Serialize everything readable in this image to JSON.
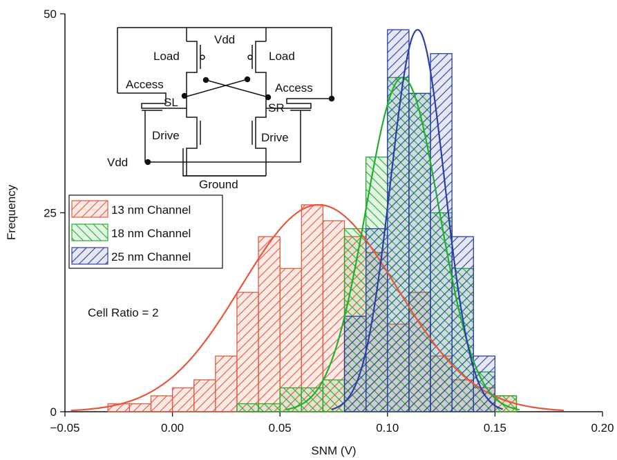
{
  "colors": {
    "series_13nm": "#e8553a",
    "series_18nm": "#1fb02a",
    "series_25nm": "#2a3ea8"
  },
  "chart_data": {
    "type": "bar",
    "subtype": "histogram-with-fit",
    "xlabel": "SNM (V)",
    "ylabel": "Frequency",
    "xlim": [
      -0.05,
      0.2
    ],
    "ylim": [
      0,
      50
    ],
    "xticks": [
      "−0.05",
      "0.00",
      "0.05",
      "0.10",
      "0.15",
      "0.20"
    ],
    "yticks": [
      "0",
      "25",
      "50"
    ],
    "bin_width": 0.01,
    "grid": false,
    "legend_position": "center-left",
    "annotation": "Cell Ratio = 2",
    "series": [
      {
        "name": "13 nm Channel",
        "color_key": "series_13nm",
        "bins": [
          {
            "x0": -0.03,
            "count": 1
          },
          {
            "x0": -0.02,
            "count": 1
          },
          {
            "x0": -0.01,
            "count": 2
          },
          {
            "x0": 0.0,
            "count": 3
          },
          {
            "x0": 0.01,
            "count": 4
          },
          {
            "x0": 0.02,
            "count": 7
          },
          {
            "x0": 0.03,
            "count": 15
          },
          {
            "x0": 0.04,
            "count": 22
          },
          {
            "x0": 0.05,
            "count": 18
          },
          {
            "x0": 0.06,
            "count": 26
          },
          {
            "x0": 0.07,
            "count": 24
          },
          {
            "x0": 0.08,
            "count": 22
          },
          {
            "x0": 0.09,
            "count": 20
          },
          {
            "x0": 0.1,
            "count": 11
          },
          {
            "x0": 0.11,
            "count": 15
          },
          {
            "x0": 0.12,
            "count": 7
          },
          {
            "x0": 0.13,
            "count": 4
          },
          {
            "x0": 0.14,
            "count": 3
          },
          {
            "x0": 0.15,
            "count": 2
          }
        ],
        "fit": {
          "mean": 0.068,
          "sd": 0.036,
          "peak": 26
        }
      },
      {
        "name": "18 nm Channel",
        "color_key": "series_18nm",
        "bins": [
          {
            "x0": 0.03,
            "count": 1
          },
          {
            "x0": 0.04,
            "count": 1
          },
          {
            "x0": 0.05,
            "count": 3
          },
          {
            "x0": 0.06,
            "count": 3
          },
          {
            "x0": 0.07,
            "count": 4
          },
          {
            "x0": 0.08,
            "count": 23
          },
          {
            "x0": 0.09,
            "count": 32
          },
          {
            "x0": 0.1,
            "count": 42
          },
          {
            "x0": 0.11,
            "count": 40
          },
          {
            "x0": 0.12,
            "count": 25
          },
          {
            "x0": 0.13,
            "count": 18
          },
          {
            "x0": 0.14,
            "count": 5
          },
          {
            "x0": 0.15,
            "count": 2
          }
        ],
        "fit": {
          "mean": 0.107,
          "sd": 0.017,
          "peak": 42
        }
      },
      {
        "name": "25 nm Channel",
        "color_key": "series_25nm",
        "bins": [
          {
            "x0": 0.08,
            "count": 12
          },
          {
            "x0": 0.09,
            "count": 23
          },
          {
            "x0": 0.1,
            "count": 48
          },
          {
            "x0": 0.11,
            "count": 40
          },
          {
            "x0": 0.12,
            "count": 45
          },
          {
            "x0": 0.13,
            "count": 22
          },
          {
            "x0": 0.14,
            "count": 7
          }
        ],
        "fit": {
          "mean": 0.114,
          "sd": 0.0125,
          "peak": 48
        }
      }
    ],
    "inset_circuit": {
      "labels": [
        "Vdd",
        "Load",
        "Load",
        "Access",
        "Access",
        "SL",
        "SR",
        "Drive",
        "Drive",
        "Vdd",
        "Ground"
      ]
    }
  }
}
